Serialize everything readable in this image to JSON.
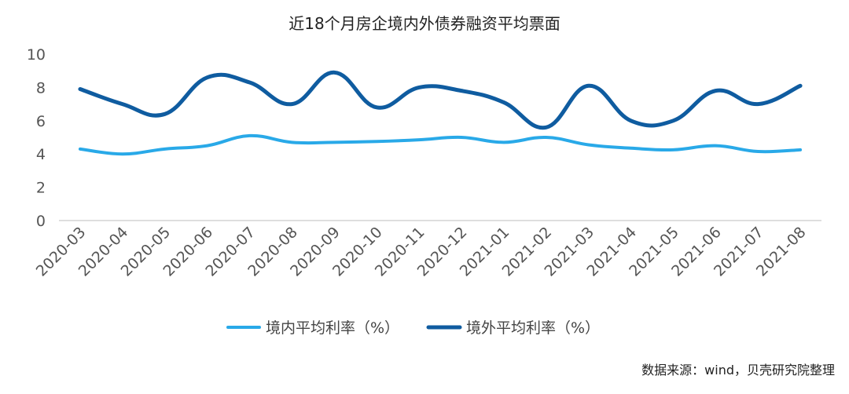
{
  "chart_data": {
    "type": "line",
    "title": "近18个月房企境内外债券融资平均票面",
    "categories": [
      "2020-03",
      "2020-04",
      "2020-05",
      "2020-06",
      "2020-07",
      "2020-08",
      "2020-09",
      "2020-10",
      "2020-11",
      "2020-12",
      "2021-01",
      "2021-02",
      "2021-03",
      "2021-04",
      "2021-05",
      "2021-06",
      "2021-07",
      "2021-08"
    ],
    "series": [
      {
        "name": "境内平均利率（%）",
        "color": "#29a9e8",
        "values": [
          4.3,
          4.0,
          4.3,
          4.5,
          5.1,
          4.7,
          4.7,
          4.75,
          4.85,
          5.0,
          4.7,
          5.0,
          4.55,
          4.35,
          4.25,
          4.5,
          4.15,
          4.25
        ]
      },
      {
        "name": "境外平均利率（%）",
        "color": "#0f5ca0",
        "values": [
          7.9,
          7.0,
          6.4,
          8.6,
          8.3,
          7.0,
          8.9,
          6.8,
          8.0,
          7.8,
          7.1,
          5.6,
          8.1,
          6.0,
          6.0,
          7.8,
          7.0,
          8.1
        ]
      }
    ],
    "ylim": [
      0,
      10
    ],
    "yticks": [
      0,
      2,
      4,
      6,
      8,
      10
    ],
    "legend_position": "bottom",
    "grid": false
  },
  "source_note": "数据来源：wind，贝壳研究院整理"
}
